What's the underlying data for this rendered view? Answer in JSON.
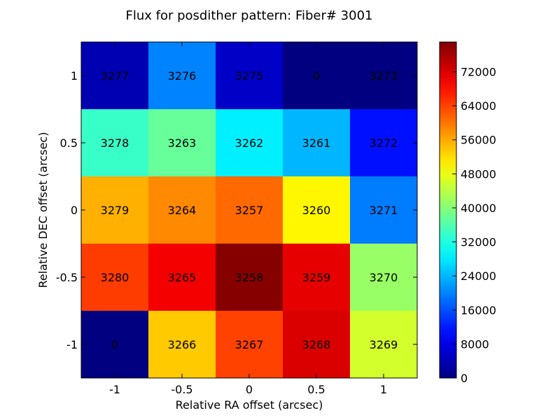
{
  "chart_data": {
    "type": "heatmap",
    "title": "Flux for posdither pattern: Fiber# 3001",
    "xlabel": "Relative RA offset (arcsec)",
    "ylabel": "Relative DEC offset (arcsec)",
    "x_ticks": [
      "-1",
      "-0.5",
      "0",
      "0.5",
      "1"
    ],
    "y_ticks": [
      "1",
      "0.5",
      "0",
      "-0.5",
      "-1"
    ],
    "colormap": "jet",
    "colorbar": {
      "range": [
        0,
        79000
      ],
      "ticks": [
        0,
        8000,
        16000,
        24000,
        32000,
        40000,
        48000,
        56000,
        64000,
        72000
      ]
    },
    "rows": [
      {
        "dec": "1",
        "cells": [
          {
            "label": "3277",
            "value": 4000
          },
          {
            "label": "3276",
            "value": 20000
          },
          {
            "label": "3275",
            "value": 5500
          },
          {
            "label": "0",
            "value": 0
          },
          {
            "label": "3273",
            "value": 0
          }
        ]
      },
      {
        "dec": "0.5",
        "cells": [
          {
            "label": "3278",
            "value": 34000
          },
          {
            "label": "3263",
            "value": 37500
          },
          {
            "label": "3262",
            "value": 28500
          },
          {
            "label": "3261",
            "value": 24000
          },
          {
            "label": "3272",
            "value": 11000
          }
        ]
      },
      {
        "dec": "0",
        "cells": [
          {
            "label": "3279",
            "value": 55500
          },
          {
            "label": "3264",
            "value": 58500
          },
          {
            "label": "3257",
            "value": 61000
          },
          {
            "label": "3260",
            "value": 50000
          },
          {
            "label": "3271",
            "value": 19500
          }
        ]
      },
      {
        "dec": "-0.5",
        "cells": [
          {
            "label": "3280",
            "value": 64500
          },
          {
            "label": "3265",
            "value": 70000
          },
          {
            "label": "3258",
            "value": 78500
          },
          {
            "label": "3259",
            "value": 71000
          },
          {
            "label": "3270",
            "value": 41500
          }
        ]
      },
      {
        "dec": "-1",
        "cells": [
          {
            "label": "0",
            "value": 0
          },
          {
            "label": "3266",
            "value": 53500
          },
          {
            "label": "3267",
            "value": 64000
          },
          {
            "label": "3268",
            "value": 72000
          },
          {
            "label": "3269",
            "value": 46000
          }
        ]
      }
    ]
  }
}
